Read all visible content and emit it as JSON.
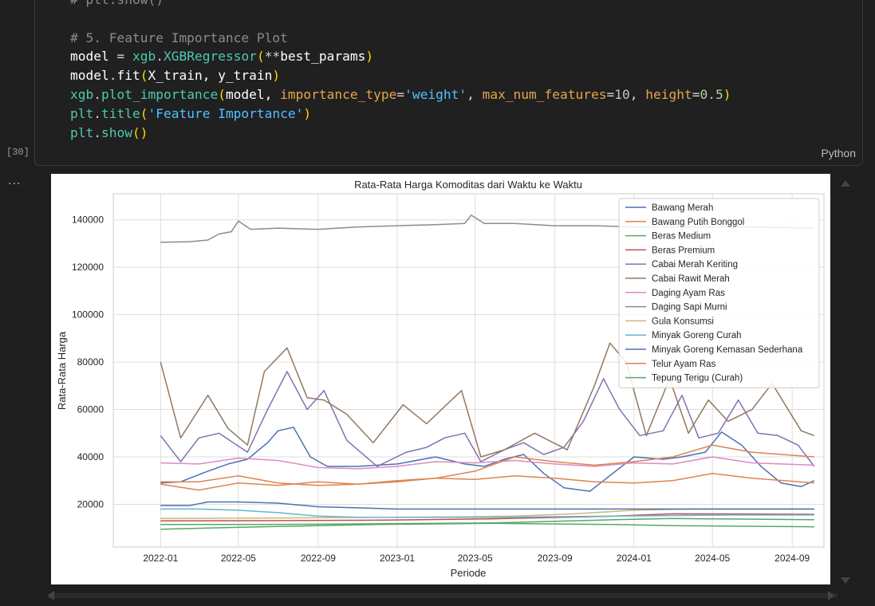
{
  "code": {
    "line0": "# plt.show()",
    "comment": "# 5. Feature Importance Plot",
    "l1": {
      "model": "model",
      "eq": " = ",
      "xgb": "xgb",
      "dot": ".",
      "cls": "XGBRegressor",
      "p1": "(",
      "star": "**",
      "arg": "best_params",
      "p2": ")"
    },
    "l2": {
      "model": "model",
      "dot": ".",
      "fn": "fit",
      "p1": "(",
      "args": "X_train, y_train",
      "p2": ")"
    },
    "l3": {
      "xgb": "xgb",
      "dot": ".",
      "fn": "plot_importance",
      "p1": "(",
      "a1": "model, ",
      "k1": "importance_type",
      "eq1": "=",
      "v1": "'weight'",
      "c1": ", ",
      "k2": "max_num_features",
      "eq2": "=",
      "v2": "10",
      "c2": ", ",
      "k3": "height",
      "eq3": "=",
      "v3": "0.5",
      "p2": ")"
    },
    "l4": {
      "plt": "plt",
      "dot": ".",
      "fn": "title",
      "p1": "(",
      "s": "'Feature Importance'",
      "p2": ")"
    },
    "l5": {
      "plt": "plt",
      "dot": ".",
      "fn": "show",
      "p1": "(",
      "p2": ")"
    }
  },
  "exec_count": "[30]",
  "language": "Python",
  "output_more": "...",
  "chart_data": {
    "type": "line",
    "title": "Rata-Rata Harga Komoditas dari Waktu ke Waktu",
    "xlabel": "Periode",
    "ylabel": "Rata-Rata Harga",
    "xlim": [
      "2021-10-20",
      "2024-10-20"
    ],
    "ylim": [
      2000,
      151000
    ],
    "x_ticks": [
      "2022-01",
      "2022-05",
      "2022-09",
      "2023-01",
      "2023-05",
      "2023-09",
      "2024-01",
      "2024-05",
      "2024-09"
    ],
    "y_ticks": [
      20000,
      40000,
      60000,
      80000,
      100000,
      120000,
      140000
    ],
    "grid": true,
    "legend_position": "top-right",
    "series": [
      {
        "name": "Bawang Merah",
        "color": "#4c72b0",
        "x": [
          "2022-01-01",
          "2022-02-01",
          "2022-03-15",
          "2022-04-15",
          "2022-05-15",
          "2022-06-15",
          "2022-07-01",
          "2022-07-25",
          "2022-08-20",
          "2022-09-15",
          "2022-11-01",
          "2023-01-01",
          "2023-03-01",
          "2023-04-15",
          "2023-05-15",
          "2023-06-15",
          "2023-07-15",
          "2023-08-15",
          "2023-09-15",
          "2023-10-25",
          "2023-11-15",
          "2024-01-01",
          "2024-02-15",
          "2024-03-15",
          "2024-04-20",
          "2024-05-15",
          "2024-06-15",
          "2024-07-15",
          "2024-08-15",
          "2024-09-15",
          "2024-10-05"
        ],
        "y": [
          29000,
          29500,
          34000,
          37000,
          39000,
          46000,
          51000,
          52500,
          40000,
          36000,
          36000,
          37000,
          40000,
          37000,
          36000,
          39000,
          41000,
          33000,
          27000,
          25500,
          30000,
          40000,
          39000,
          40000,
          42000,
          50500,
          45000,
          36000,
          29000,
          27500,
          30000
        ]
      },
      {
        "name": "Bawang Putih Bonggol",
        "color": "#dd8452",
        "x": [
          "2022-01-01",
          "2022-03-01",
          "2022-05-01",
          "2022-07-01",
          "2022-09-01",
          "2022-11-01",
          "2023-01-01",
          "2023-03-01",
          "2023-05-01",
          "2023-07-01",
          "2023-09-01",
          "2023-11-01",
          "2024-01-01",
          "2024-03-01",
          "2024-05-01",
          "2024-07-01",
          "2024-10-05"
        ],
        "y": [
          29500,
          29500,
          32000,
          29000,
          28000,
          28500,
          30000,
          31000,
          30500,
          32000,
          31000,
          29500,
          29000,
          30000,
          33000,
          31000,
          29000
        ]
      },
      {
        "name": "Beras Medium",
        "color": "#55a868",
        "x": [
          "2022-01-01",
          "2022-06-01",
          "2022-12-01",
          "2023-06-01",
          "2023-12-01",
          "2024-03-01",
          "2024-10-05"
        ],
        "y": [
          11500,
          11500,
          11800,
          12200,
          13500,
          14000,
          13500
        ]
      },
      {
        "name": "Beras Premium",
        "color": "#c44e52",
        "x": [
          "2022-01-01",
          "2022-06-01",
          "2022-12-01",
          "2023-06-01",
          "2023-12-01",
          "2024-03-01",
          "2024-10-05"
        ],
        "y": [
          13000,
          13100,
          13300,
          13900,
          15000,
          16000,
          15800
        ]
      },
      {
        "name": "Cabai Merah Keriting",
        "color": "#8172b3",
        "x": [
          "2022-01-01",
          "2022-02-01",
          "2022-03-01",
          "2022-04-01",
          "2022-05-15",
          "2022-06-15",
          "2022-07-15",
          "2022-08-15",
          "2022-09-10",
          "2022-10-15",
          "2022-12-01",
          "2023-01-15",
          "2023-02-15",
          "2023-03-15",
          "2023-04-15",
          "2023-05-10",
          "2023-06-15",
          "2023-07-15",
          "2023-08-15",
          "2023-09-15",
          "2023-10-15",
          "2023-11-15",
          "2023-12-10",
          "2024-01-10",
          "2024-02-15",
          "2024-03-15",
          "2024-04-10",
          "2024-05-10",
          "2024-06-10",
          "2024-07-10",
          "2024-08-10",
          "2024-09-10",
          "2024-10-05"
        ],
        "y": [
          49000,
          38000,
          48000,
          50000,
          42000,
          60000,
          76000,
          60000,
          68000,
          47000,
          36000,
          42000,
          44000,
          48000,
          50000,
          38000,
          43000,
          46000,
          41000,
          44000,
          55000,
          73000,
          60000,
          49000,
          51000,
          66000,
          48000,
          50000,
          64000,
          50000,
          49000,
          45000,
          36000
        ]
      },
      {
        "name": "Cabai Rawit Merah",
        "color": "#937860",
        "x": [
          "2022-01-01",
          "2022-02-01",
          "2022-03-15",
          "2022-04-15",
          "2022-05-15",
          "2022-06-10",
          "2022-07-15",
          "2022-08-15",
          "2022-09-10",
          "2022-10-15",
          "2022-11-25",
          "2023-01-10",
          "2023-02-15",
          "2023-04-10",
          "2023-05-10",
          "2023-06-15",
          "2023-08-01",
          "2023-09-20",
          "2023-11-01",
          "2023-11-25",
          "2023-12-20",
          "2024-01-20",
          "2024-02-25",
          "2024-03-25",
          "2024-04-25",
          "2024-05-25",
          "2024-07-01",
          "2024-08-01",
          "2024-09-15",
          "2024-10-05"
        ],
        "y": [
          80000,
          48000,
          66000,
          52000,
          45000,
          76000,
          86000,
          65000,
          64000,
          58000,
          46000,
          62000,
          54000,
          68000,
          40000,
          43000,
          50000,
          43000,
          70000,
          88000,
          80000,
          49000,
          73000,
          50000,
          64000,
          55000,
          60000,
          71000,
          51000,
          49000
        ]
      },
      {
        "name": "Daging Ayam Ras",
        "color": "#da8bc3",
        "x": [
          "2022-01-01",
          "2022-03-01",
          "2022-05-01",
          "2022-07-01",
          "2022-09-01",
          "2022-11-01",
          "2023-01-01",
          "2023-03-01",
          "2023-05-01",
          "2023-07-01",
          "2023-09-01",
          "2023-11-01",
          "2024-01-01",
          "2024-03-01",
          "2024-05-01",
          "2024-07-01",
          "2024-10-05"
        ],
        "y": [
          37500,
          37000,
          39500,
          38500,
          35500,
          35000,
          36000,
          38000,
          37500,
          38500,
          37000,
          36000,
          37500,
          37000,
          40000,
          37500,
          36500
        ]
      },
      {
        "name": "Daging Sapi Murni",
        "color": "#8c8c8c",
        "x": [
          "2022-01-01",
          "2022-02-15",
          "2022-03-15",
          "2022-04-01",
          "2022-04-20",
          "2022-05-01",
          "2022-05-20",
          "2022-07-01",
          "2022-09-01",
          "2022-11-01",
          "2023-01-01",
          "2023-03-01",
          "2023-04-15",
          "2023-04-25",
          "2023-05-15",
          "2023-07-01",
          "2023-09-01",
          "2023-11-01",
          "2024-01-01",
          "2024-03-01",
          "2024-05-01",
          "2024-07-01",
          "2024-10-05"
        ],
        "y": [
          130500,
          130800,
          131500,
          134000,
          135000,
          139500,
          136000,
          136500,
          136000,
          137000,
          137500,
          138000,
          138500,
          142000,
          138500,
          138500,
          137500,
          137500,
          137000,
          137000,
          137000,
          137000,
          136500
        ]
      },
      {
        "name": "Gula Konsumsi",
        "color": "#ccb974",
        "x": [
          "2022-01-01",
          "2022-06-01",
          "2022-12-01",
          "2023-04-01",
          "2023-07-01",
          "2023-10-01",
          "2024-01-01",
          "2024-04-01",
          "2024-10-05"
        ],
        "y": [
          14000,
          14200,
          14500,
          14700,
          15000,
          16000,
          17500,
          18000,
          18000
        ]
      },
      {
        "name": "Minyak Goreng Curah",
        "color": "#64b5cd",
        "x": [
          "2022-01-01",
          "2022-03-01",
          "2022-05-01",
          "2022-07-01",
          "2022-09-01",
          "2022-11-01",
          "2023-01-01",
          "2023-06-01",
          "2023-12-01",
          "2024-06-01",
          "2024-10-05"
        ],
        "y": [
          18000,
          18000,
          17500,
          16500,
          15000,
          14500,
          14500,
          14500,
          15000,
          15500,
          15500
        ]
      },
      {
        "name": "Minyak Goreng Kemasan Sederhana",
        "color": "#4c72b0",
        "x": [
          "2022-01-01",
          "2022-02-15",
          "2022-03-15",
          "2022-05-01",
          "2022-07-01",
          "2022-09-01",
          "2022-11-01",
          "2023-01-01",
          "2023-06-01",
          "2023-12-01",
          "2024-06-01",
          "2024-10-05"
        ],
        "y": [
          19500,
          19500,
          21000,
          21000,
          20500,
          19000,
          18500,
          18000,
          18000,
          18000,
          18000,
          18000
        ]
      },
      {
        "name": "Telur Ayam Ras",
        "color": "#dd8452",
        "x": [
          "2022-01-01",
          "2022-03-01",
          "2022-05-01",
          "2022-07-01",
          "2022-09-01",
          "2022-11-01",
          "2023-01-01",
          "2023-03-01",
          "2023-05-01",
          "2023-07-01",
          "2023-09-01",
          "2023-11-01",
          "2024-01-01",
          "2024-03-01",
          "2024-05-01",
          "2024-07-01",
          "2024-10-05"
        ],
        "y": [
          28500,
          26000,
          29000,
          28000,
          29500,
          28500,
          29500,
          31000,
          34000,
          40000,
          38000,
          36500,
          38000,
          40000,
          45000,
          42000,
          40000
        ]
      },
      {
        "name": "Tepung Terigu (Curah)",
        "color": "#55a868",
        "x": [
          "2022-01-01",
          "2022-06-01",
          "2022-12-01",
          "2023-06-01",
          "2023-12-01",
          "2024-03-01",
          "2024-10-05"
        ],
        "y": [
          9500,
          10500,
          11500,
          12000,
          11500,
          11000,
          10500
        ]
      }
    ]
  }
}
